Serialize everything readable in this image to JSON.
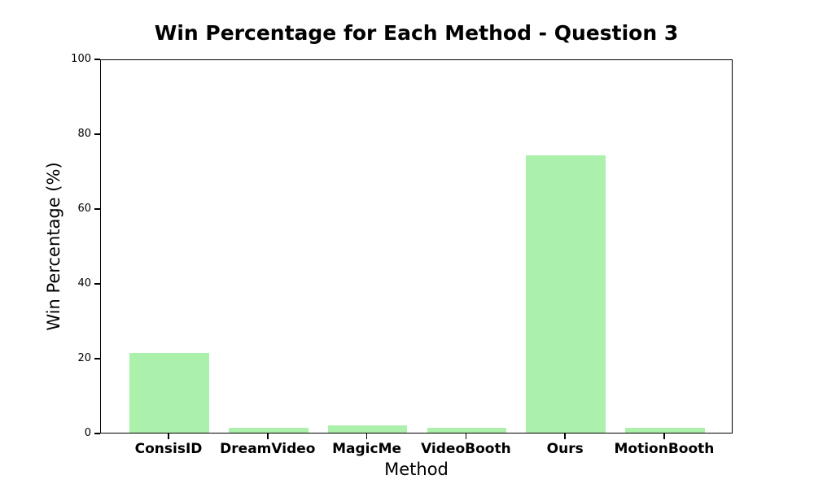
{
  "title": "Win Percentage for Each Method - Question 3",
  "chart_data": {
    "type": "bar",
    "categories": [
      "ConsisID",
      "DreamVideo",
      "MagicMe",
      "VideoBooth",
      "Ours",
      "MotionBooth"
    ],
    "values": [
      21.2,
      1.2,
      2.0,
      1.4,
      74.1,
      1.2
    ],
    "title": "Win Percentage for Each Method - Question 3",
    "xlabel": "Method",
    "ylabel": "Win Percentage (%)",
    "ylim": [
      0,
      100
    ],
    "yticks": [
      0,
      20,
      40,
      60,
      80,
      100
    ],
    "grid": false,
    "legend": null,
    "bar_color": "#abf0ab"
  },
  "colors": {
    "bar": "#abf0ab",
    "axis": "#000000",
    "background": "#ffffff"
  }
}
